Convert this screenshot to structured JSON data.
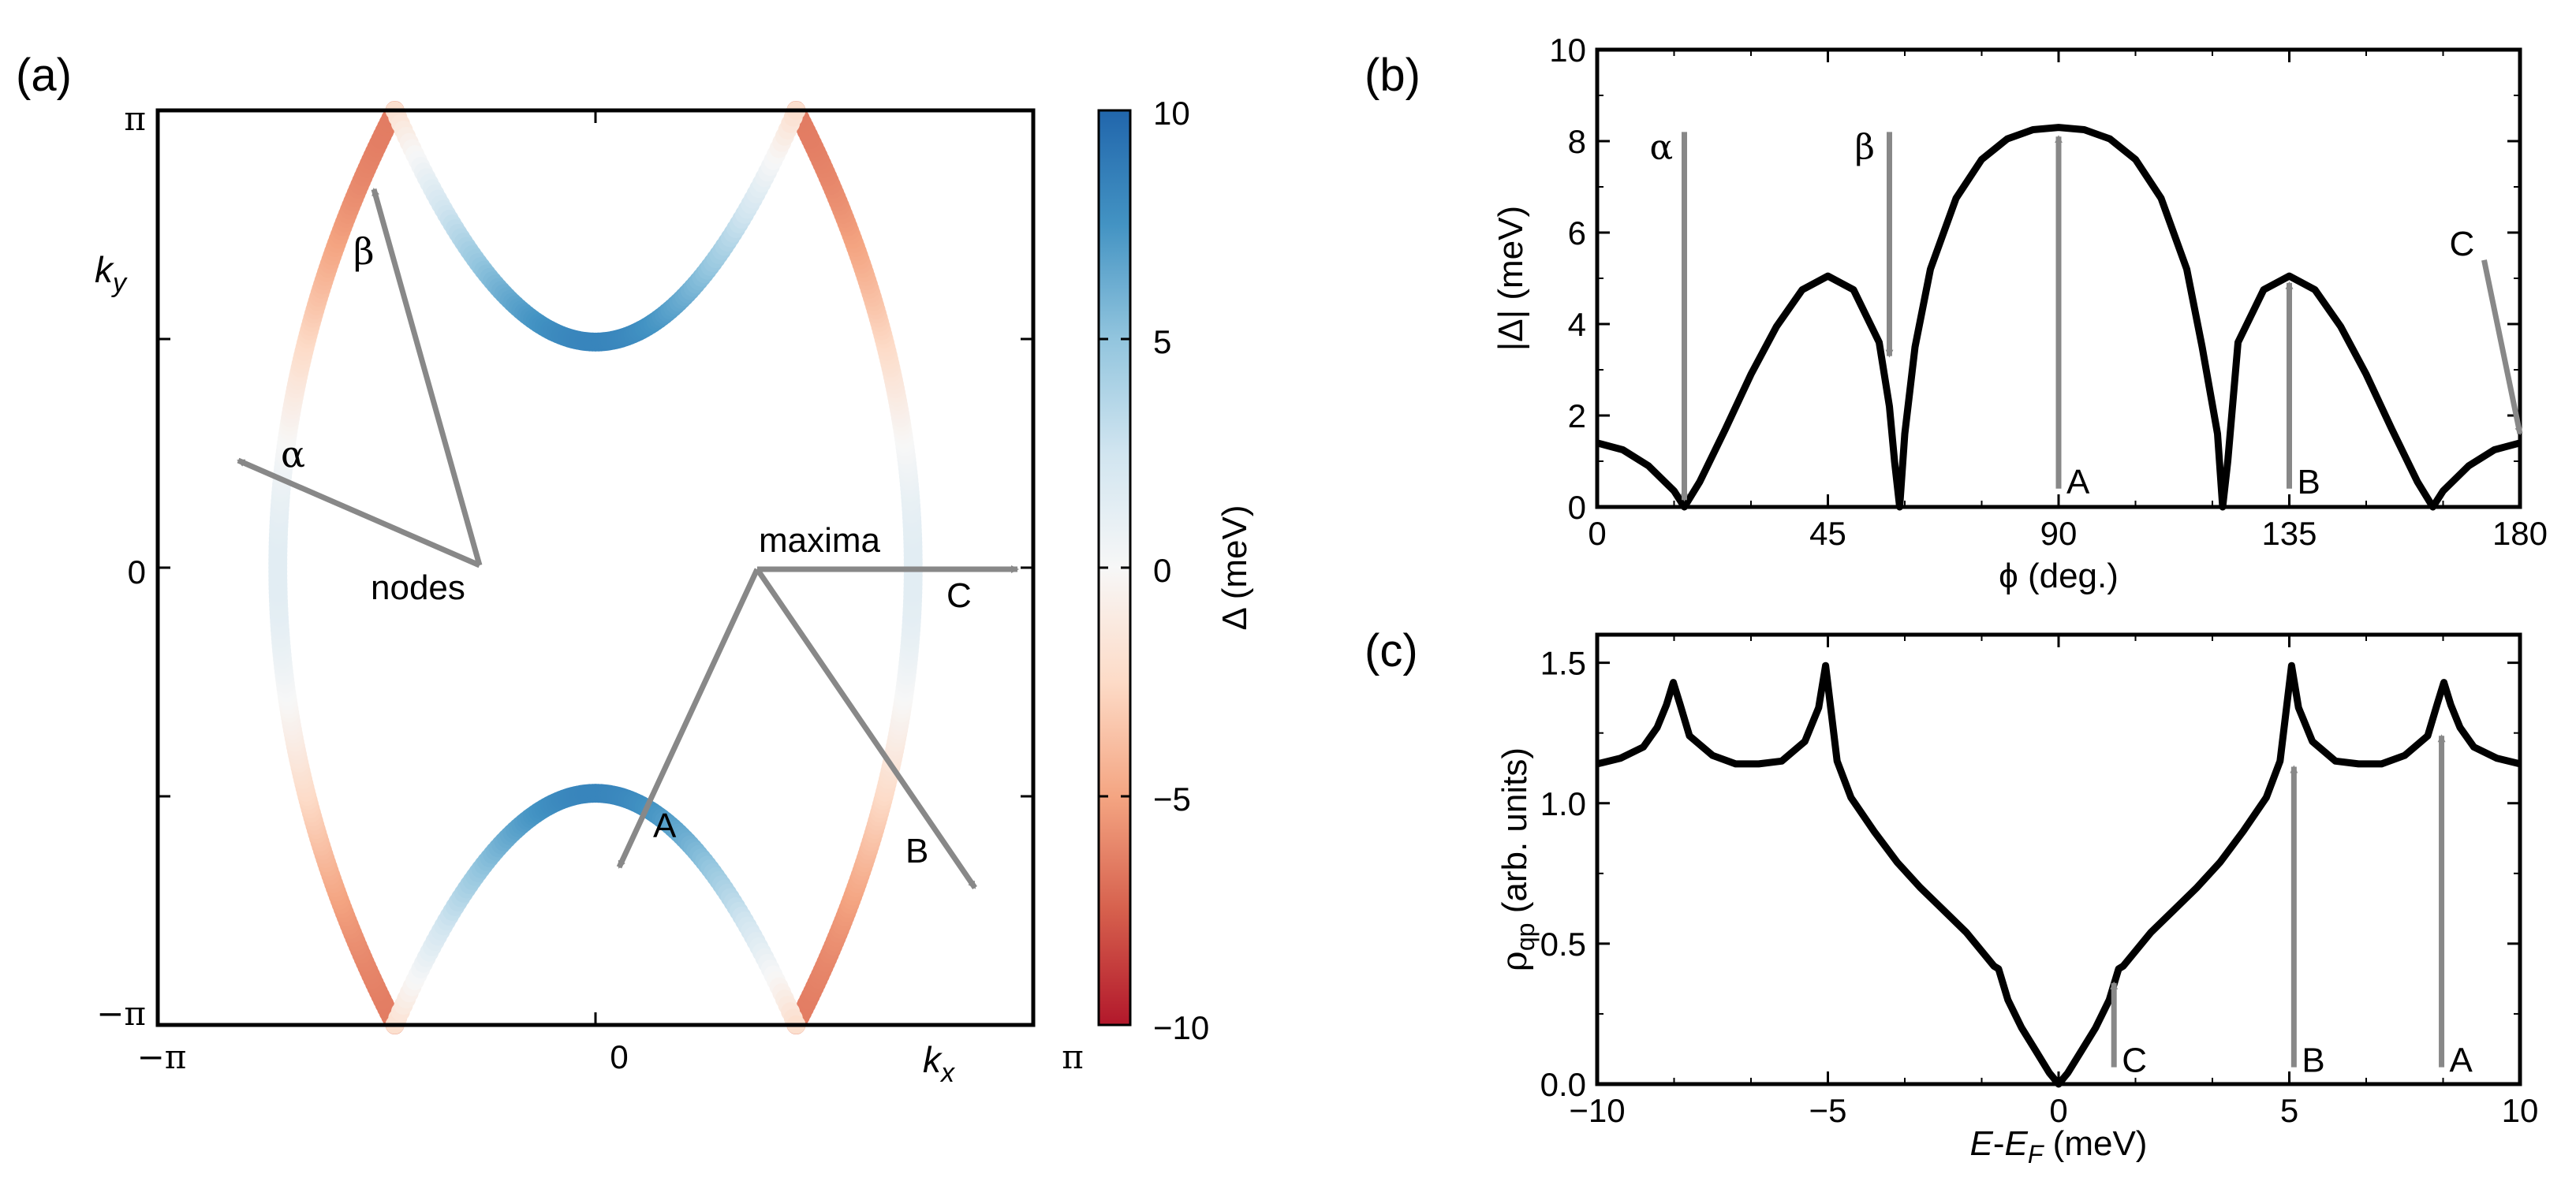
{
  "chart_data": [
    {
      "panel_label": "(a)",
      "type": "scatter",
      "x_ticks": [
        "−π",
        "0",
        "π"
      ],
      "y_ticks": [
        "π",
        "0",
        "−π"
      ],
      "xlabel": "k_x",
      "ylabel": "k_y",
      "xlim": [
        -3.1416,
        3.1416
      ],
      "ylim": [
        -3.1416,
        3.1416
      ],
      "colorbar": {
        "label": "Δ (meV)",
        "ticks": [
          "10",
          "5",
          "0",
          "−5",
          "−10"
        ],
        "range": [
          -10,
          10
        ],
        "colors": [
          "#b2182b",
          "#d6604d",
          "#f4a582",
          "#fddbc7",
          "#f7f7f7",
          "#d1e5f0",
          "#92c5de",
          "#4393c3",
          "#2166ac"
        ]
      },
      "annotations": {
        "nodes": "nodes",
        "maxima": "maxima",
        "alpha": "α",
        "beta": "β",
        "A": "A",
        "B": "B",
        "C": "C"
      },
      "fermi_surface": {
        "vertical_sheet_x_center": 2.28,
        "vertical_sheet_x_edge": 1.4,
        "arc_y_center": 1.55,
        "corner_x": 1.44,
        "gap_amplitude_meV": 8.3
      }
    },
    {
      "panel_label": "(b)",
      "type": "line",
      "xlabel": "ϕ (deg.)",
      "ylabel": "|Δ| (meV)",
      "xlim": [
        0,
        180
      ],
      "ylim": [
        0,
        10
      ],
      "x_ticks": [
        "0",
        "45",
        "90",
        "135",
        "180"
      ],
      "y_ticks": [
        "0",
        "2",
        "4",
        "6",
        "8",
        "10"
      ],
      "series": [
        {
          "x": [
            0,
            5,
            10,
            15,
            17,
            20,
            25,
            30,
            35,
            40,
            45,
            50,
            55,
            57,
            58,
            59,
            60,
            62,
            65,
            70,
            75,
            80,
            85,
            90,
            95,
            100,
            105,
            110,
            115,
            118,
            121,
            122,
            123,
            125,
            130,
            135,
            140,
            145,
            150,
            155,
            160,
            163,
            165,
            170,
            175,
            180
          ],
          "y": [
            1.4,
            1.25,
            0.9,
            0.35,
            0.0,
            0.55,
            1.7,
            2.9,
            3.95,
            4.75,
            5.05,
            4.75,
            3.6,
            2.2,
            1.0,
            0.0,
            1.6,
            3.5,
            5.2,
            6.75,
            7.6,
            8.05,
            8.25,
            8.3,
            8.25,
            8.05,
            7.6,
            6.75,
            5.2,
            3.5,
            1.6,
            0.0,
            1.0,
            3.6,
            4.75,
            5.05,
            4.75,
            3.95,
            2.9,
            1.7,
            0.55,
            0.0,
            0.35,
            0.9,
            1.25,
            1.4
          ]
        }
      ],
      "arrows": [
        {
          "label": "α",
          "x": 17,
          "y_from": 8.2,
          "y_to": 0.15
        },
        {
          "label": "β",
          "x": 57,
          "y_from": 8.2,
          "y_to": 3.3
        },
        {
          "label": "A",
          "x": 90,
          "y_from": 0.4,
          "y_to": 8.1
        },
        {
          "label": "B",
          "x": 135,
          "y_from": 0.4,
          "y_to": 4.9
        },
        {
          "label": "C",
          "x_from": 173,
          "y_from": 5.4,
          "x_to": 180,
          "y_to": 1.6
        }
      ]
    },
    {
      "panel_label": "(c)",
      "type": "line",
      "xlabel": "E-E_F (meV)",
      "ylabel": "ρ_qp (arb. units)",
      "xlim": [
        -10,
        10
      ],
      "ylim": [
        0,
        1.6
      ],
      "x_ticks": [
        "−10",
        "−5",
        "0",
        "5",
        "10"
      ],
      "y_ticks": [
        "0.0",
        "0.5",
        "1.0",
        "1.5"
      ],
      "series": [
        {
          "x": [
            -10,
            -9.5,
            -9,
            -8.7,
            -8.5,
            -8.35,
            -8.2,
            -8,
            -7.5,
            -7,
            -6.5,
            -6,
            -5.5,
            -5.2,
            -5.05,
            -4.8,
            -4.5,
            -4,
            -3.5,
            -3,
            -2.5,
            -2,
            -1.6,
            -1.4,
            -1.3,
            -1.1,
            -0.8,
            -0.5,
            -0.2,
            0,
            0.2,
            0.5,
            0.8,
            1.1,
            1.3,
            1.4,
            1.6,
            2,
            2.5,
            3,
            3.5,
            4,
            4.5,
            4.8,
            5.05,
            5.2,
            5.5,
            6,
            6.5,
            7,
            7.5,
            8,
            8.2,
            8.35,
            8.5,
            8.7,
            9,
            9.5,
            10
          ],
          "y": [
            1.14,
            1.16,
            1.2,
            1.27,
            1.35,
            1.43,
            1.35,
            1.24,
            1.17,
            1.14,
            1.14,
            1.15,
            1.22,
            1.34,
            1.49,
            1.15,
            1.02,
            0.9,
            0.79,
            0.7,
            0.62,
            0.54,
            0.46,
            0.42,
            0.41,
            0.3,
            0.2,
            0.12,
            0.04,
            0.0,
            0.04,
            0.12,
            0.2,
            0.3,
            0.41,
            0.42,
            0.46,
            0.54,
            0.62,
            0.7,
            0.79,
            0.9,
            1.02,
            1.15,
            1.49,
            1.34,
            1.22,
            1.15,
            1.14,
            1.14,
            1.17,
            1.24,
            1.35,
            1.43,
            1.35,
            1.27,
            1.2,
            1.16,
            1.14
          ]
        }
      ],
      "arrows": [
        {
          "label": "C",
          "x": 1.2,
          "y_from": 0.06,
          "y_to": 0.36
        },
        {
          "label": "B",
          "x": 5.1,
          "y_from": 0.06,
          "y_to": 1.13
        },
        {
          "label": "A",
          "x": 8.3,
          "y_from": 0.06,
          "y_to": 1.24
        }
      ]
    }
  ]
}
